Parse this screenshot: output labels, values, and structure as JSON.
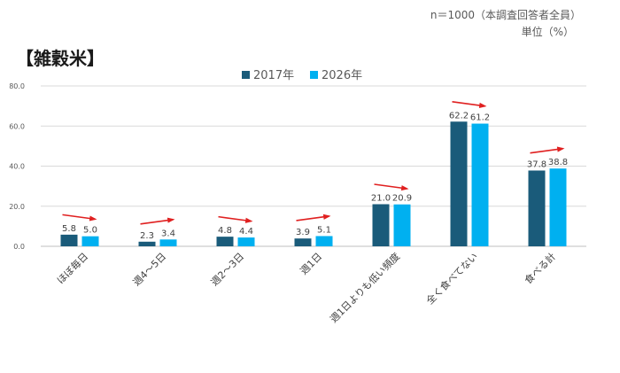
{
  "header": {
    "sample_note": "n＝1000（本調査回答者全員）",
    "unit_note": "単位（%）",
    "title": "【雑穀米】"
  },
  "colors": {
    "series_2017": "#1a5b7a",
    "series_2026": "#00b0f0",
    "arrow": "#e02020",
    "grid": "#d9d9d9",
    "axis": "#bfbfbf"
  },
  "chart_data": {
    "type": "bar",
    "categories": [
      "ほぼ毎日",
      "週4～5日",
      "週2～3日",
      "週1日",
      "週1日よりも低い頻度",
      "全く食べてない",
      "食べる計"
    ],
    "series": [
      {
        "name": "2017年",
        "values": [
          5.8,
          2.3,
          4.8,
          3.9,
          21.0,
          62.2,
          37.8
        ]
      },
      {
        "name": "2026年",
        "values": [
          5.0,
          3.4,
          4.4,
          5.1,
          20.9,
          61.2,
          38.8
        ]
      }
    ],
    "value_labels": [
      [
        "5.8",
        "2.3",
        "4.8",
        "3.9",
        "21.0",
        "62.2",
        "37.8"
      ],
      [
        "5.0",
        "3.4",
        "4.4",
        "5.1",
        "20.9",
        "61.2",
        "38.8"
      ]
    ],
    "ylim": [
      0,
      80
    ],
    "yticks": [
      "0.0",
      "20.0",
      "40.0",
      "60.0",
      "80.0"
    ],
    "grid": true,
    "legend_position": "top-center",
    "trend_arrows": true
  }
}
